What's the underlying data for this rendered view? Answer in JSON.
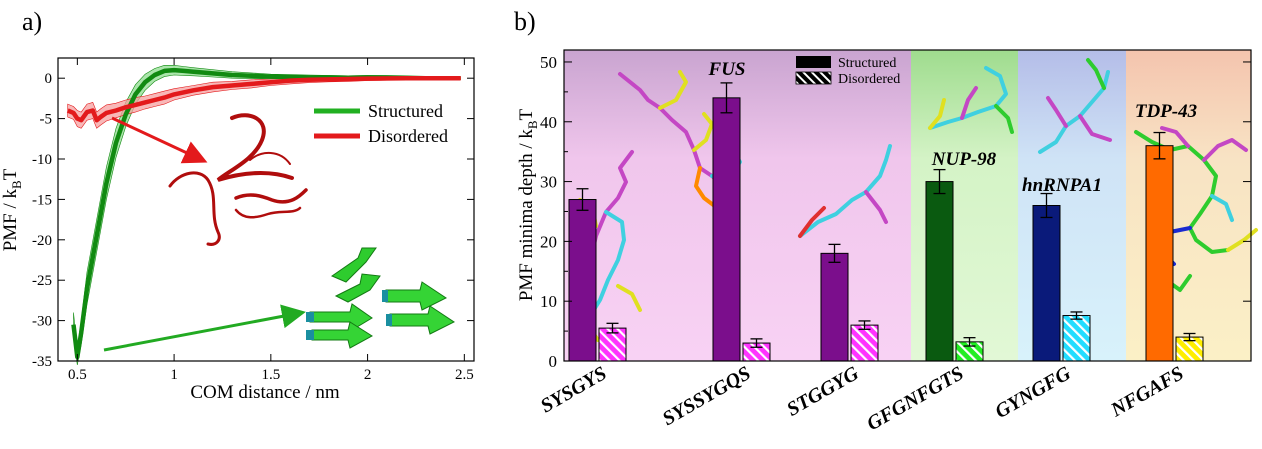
{
  "chart_data": [
    {
      "panel_label": "a)",
      "type": "line",
      "xlabel": "COM distance / nm",
      "ylabel_main": "PMF / k",
      "ylabel_sub": "B",
      "ylabel_tail": "T",
      "xlim": [
        0.4,
        2.55
      ],
      "ylim": [
        -35,
        2.5
      ],
      "x_ticks": [
        0.5,
        1,
        1.5,
        2,
        2.5
      ],
      "x_tick_labels": [
        "0.5",
        "1",
        "1.5",
        "2",
        "2.5"
      ],
      "y_ticks": [
        0,
        -5,
        -10,
        -15,
        -20,
        -25,
        -30,
        -35
      ],
      "y_tick_labels": [
        "0",
        "-5",
        "-10",
        "-15",
        "-20",
        "-25",
        "-30",
        "-35"
      ],
      "legend_position": "right",
      "series": [
        {
          "name": "Structured",
          "color": "#118a11",
          "band_color": "#8fdc8f",
          "x": [
            0.48,
            0.5,
            0.52,
            0.55,
            0.6,
            0.65,
            0.7,
            0.75,
            0.8,
            0.85,
            0.9,
            0.95,
            1.0,
            1.05,
            1.1,
            1.2,
            1.3,
            1.4,
            1.5,
            1.6,
            1.7,
            1.8,
            1.9,
            2.0,
            2.1,
            2.2,
            2.3,
            2.4,
            2.48
          ],
          "y": [
            -30.5,
            -34.5,
            -31.5,
            -26.0,
            -19.5,
            -13.0,
            -8.0,
            -4.5,
            -2.0,
            -0.5,
            0.4,
            0.9,
            1.0,
            0.9,
            0.8,
            0.6,
            0.4,
            0.3,
            0.2,
            0.15,
            0.1,
            0.1,
            0.05,
            0.1,
            0.1,
            0.05,
            0.0,
            0.0,
            0.0
          ],
          "err": [
            1.5,
            1.0,
            1.5,
            2.0,
            2.0,
            2.0,
            1.8,
            1.5,
            1.2,
            1.0,
            0.8,
            0.7,
            0.6,
            0.55,
            0.5,
            0.45,
            0.4,
            0.35,
            0.3,
            0.3,
            0.3,
            0.25,
            0.25,
            0.25,
            0.2,
            0.2,
            0.2,
            0.2,
            0.2
          ]
        },
        {
          "name": "Disordered",
          "color": "#e31a1c",
          "band_color": "#f6a0a0",
          "x": [
            0.45,
            0.48,
            0.5,
            0.52,
            0.55,
            0.58,
            0.6,
            0.62,
            0.65,
            0.7,
            0.75,
            0.8,
            0.85,
            0.9,
            0.95,
            1.0,
            1.1,
            1.2,
            1.3,
            1.4,
            1.5,
            1.6,
            1.7,
            1.8,
            1.9,
            2.0,
            2.2,
            2.4,
            2.48
          ],
          "y": [
            -4.0,
            -4.3,
            -5.0,
            -5.2,
            -4.2,
            -4.0,
            -5.2,
            -4.8,
            -4.3,
            -4.0,
            -3.6,
            -3.3,
            -3.0,
            -2.7,
            -2.4,
            -2.0,
            -1.5,
            -1.1,
            -0.9,
            -0.7,
            -0.5,
            -0.3,
            -0.2,
            -0.15,
            -0.1,
            -0.05,
            0.0,
            0.0,
            0.0
          ],
          "err": [
            0.8,
            0.8,
            1.0,
            1.0,
            1.0,
            1.0,
            1.0,
            1.0,
            1.0,
            0.9,
            0.9,
            0.9,
            0.8,
            0.8,
            0.8,
            0.7,
            0.6,
            0.6,
            0.5,
            0.5,
            0.4,
            0.4,
            0.35,
            0.3,
            0.3,
            0.25,
            0.2,
            0.2,
            0.2
          ]
        }
      ]
    },
    {
      "panel_label": "b)",
      "type": "bar",
      "ylabel_main": "PMF minima depth  / k",
      "ylabel_sub": "B",
      "ylabel_tail": "T",
      "ylim": [
        0,
        52
      ],
      "y_ticks": [
        0,
        10,
        20,
        30,
        40,
        50
      ],
      "y_tick_labels": [
        "0",
        "10",
        "20",
        "30",
        "40",
        "50"
      ],
      "legend_position": "top-right",
      "legend": [
        "Structured",
        "Disordered"
      ],
      "categories": [
        "SYSGYS",
        "SYSSYGQS",
        "STGGYG",
        "GFGNFGTS",
        "GYNGFG",
        "NFGAFS"
      ],
      "structured": [
        27,
        44,
        18,
        30,
        26,
        36
      ],
      "structured_err": [
        1.8,
        2.5,
        1.5,
        2.0,
        2.0,
        2.2
      ],
      "disordered": [
        5.5,
        3.0,
        6.0,
        3.2,
        7.6,
        4.0
      ],
      "disordered_err": [
        0.8,
        0.7,
        0.7,
        0.7,
        0.6,
        0.6
      ],
      "bar_colors": [
        "#7b0e8c",
        "#7b0e8c",
        "#7b0e8c",
        "#0a5a10",
        "#0a1a7a",
        "#ff6a00"
      ],
      "hatch_colors": [
        "#ff33ff",
        "#ff33ff",
        "#ff33ff",
        "#22ee22",
        "#22ddff",
        "#ffee00"
      ],
      "groups": [
        {
          "label": "FUS",
          "bg": "#f4c8f0",
          "range": [
            0,
            3
          ]
        },
        {
          "label": "NUP-98",
          "bg": "#dcf5cc",
          "range": [
            3,
            4
          ]
        },
        {
          "label": "hnRNPA1",
          "bg": "#cfe6f6",
          "range": [
            4,
            5
          ]
        },
        {
          "label": "TDP-43",
          "bg": "#f8ecc8",
          "range": [
            5,
            6
          ]
        }
      ]
    }
  ]
}
